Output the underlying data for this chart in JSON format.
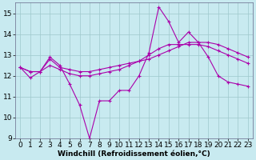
{
  "title": "",
  "xlabel": "Windchill (Refroidissement éolien,°C)",
  "ylabel": "",
  "xlim": [
    -0.5,
    23.5
  ],
  "ylim": [
    9,
    15.5
  ],
  "yticks": [
    9,
    10,
    11,
    12,
    13,
    14,
    15
  ],
  "xticks": [
    0,
    1,
    2,
    3,
    4,
    5,
    6,
    7,
    8,
    9,
    10,
    11,
    12,
    13,
    14,
    15,
    16,
    17,
    18,
    19,
    20,
    21,
    22,
    23
  ],
  "bg_color": "#c8eaf0",
  "grid_color": "#9ec8cc",
  "line_color": "#aa00aa",
  "line1_y": [
    12.4,
    11.9,
    12.2,
    12.9,
    12.5,
    11.6,
    10.6,
    9.0,
    10.8,
    10.8,
    11.3,
    11.3,
    12.0,
    13.1,
    15.3,
    14.6,
    13.6,
    14.1,
    13.6,
    12.9,
    12.0,
    11.7,
    11.6,
    11.5
  ],
  "line2_y": [
    12.4,
    12.2,
    12.2,
    12.8,
    12.4,
    12.3,
    12.2,
    12.2,
    12.3,
    12.4,
    12.5,
    12.6,
    12.7,
    12.8,
    13.0,
    13.2,
    13.4,
    13.6,
    13.6,
    13.6,
    13.5,
    13.3,
    13.1,
    12.9
  ],
  "line3_y": [
    12.4,
    12.2,
    12.2,
    12.5,
    12.3,
    12.1,
    12.0,
    12.0,
    12.1,
    12.2,
    12.3,
    12.5,
    12.7,
    13.0,
    13.3,
    13.5,
    13.5,
    13.5,
    13.5,
    13.4,
    13.2,
    13.0,
    12.8,
    12.6
  ],
  "tick_fontsize": 6.5,
  "xlabel_fontsize": 6.5
}
